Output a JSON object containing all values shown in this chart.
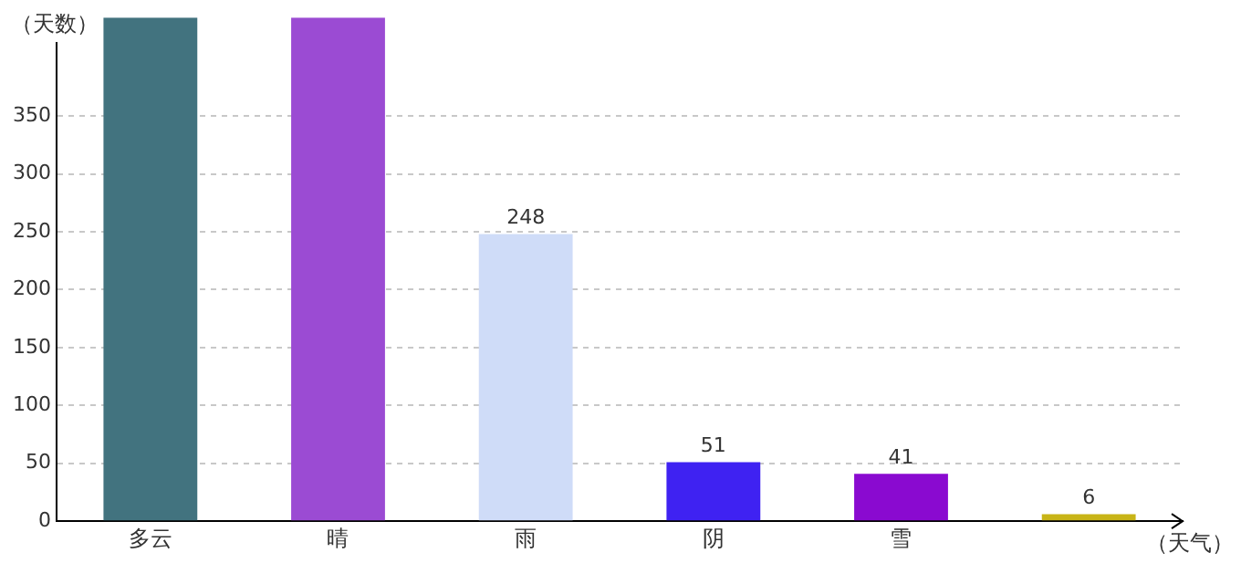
{
  "chart_data": {
    "type": "bar",
    "xlabel": "（天气）",
    "ylabel": "（天数）",
    "categories": [
      "多云",
      "晴",
      "雨",
      "阴",
      "雪",
      null
    ],
    "values": [
      435,
      435,
      248,
      51,
      41,
      6
    ],
    "colors": [
      "#42737f",
      "#9b4bd3",
      "#cfdcf8",
      "#3f22f2",
      "#8a0ad0",
      "#c8b417"
    ],
    "value_labels": [
      null,
      null,
      "248",
      "51",
      "41",
      "6"
    ],
    "ylim": [
      0,
      435
    ],
    "yticks": [
      0,
      50,
      100,
      150,
      200,
      250,
      300,
      350
    ],
    "grid": "y",
    "legend": false
  }
}
